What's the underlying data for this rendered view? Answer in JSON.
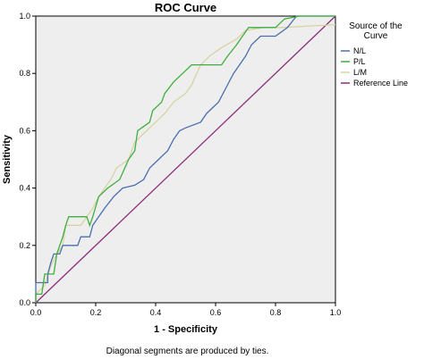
{
  "chart_data": {
    "type": "line",
    "title": "ROC Curve",
    "xlabel": "1 - Specificity",
    "ylabel": "Sensitivity",
    "xlim": [
      0,
      1
    ],
    "ylim": [
      0,
      1
    ],
    "x_ticks": [
      "0.0",
      "0.2",
      "0.4",
      "0.6",
      "0.8",
      "1.0"
    ],
    "y_ticks": [
      "0.0",
      "0.2",
      "0.4",
      "0.6",
      "0.8",
      "1.0"
    ],
    "grid": false,
    "footnote": "Diagonal segments are produced by ties.",
    "legend": {
      "title": "Source of the Curve",
      "position": "right"
    },
    "series": [
      {
        "name": "N/L",
        "color": "#4a6fad",
        "points": [
          [
            0,
            0
          ],
          [
            0,
            0.07
          ],
          [
            0.04,
            0.07
          ],
          [
            0.04,
            0.1
          ],
          [
            0.05,
            0.14
          ],
          [
            0.06,
            0.17
          ],
          [
            0.08,
            0.17
          ],
          [
            0.09,
            0.2
          ],
          [
            0.14,
            0.2
          ],
          [
            0.15,
            0.23
          ],
          [
            0.18,
            0.23
          ],
          [
            0.19,
            0.27
          ],
          [
            0.21,
            0.3
          ],
          [
            0.23,
            0.33
          ],
          [
            0.26,
            0.37
          ],
          [
            0.29,
            0.4
          ],
          [
            0.33,
            0.41
          ],
          [
            0.36,
            0.43
          ],
          [
            0.38,
            0.47
          ],
          [
            0.41,
            0.5
          ],
          [
            0.44,
            0.53
          ],
          [
            0.46,
            0.57
          ],
          [
            0.48,
            0.6
          ],
          [
            0.5,
            0.61
          ],
          [
            0.55,
            0.63
          ],
          [
            0.57,
            0.66
          ],
          [
            0.61,
            0.7
          ],
          [
            0.64,
            0.76
          ],
          [
            0.66,
            0.8
          ],
          [
            0.68,
            0.83
          ],
          [
            0.7,
            0.86
          ],
          [
            0.72,
            0.9
          ],
          [
            0.75,
            0.93
          ],
          [
            0.8,
            0.93
          ],
          [
            0.84,
            0.96
          ],
          [
            0.87,
            1.0
          ],
          [
            1.0,
            1.0
          ]
        ]
      },
      {
        "name": "P/L",
        "color": "#3fae3f",
        "points": [
          [
            0,
            0
          ],
          [
            0,
            0.03
          ],
          [
            0.02,
            0.03
          ],
          [
            0.03,
            0.1
          ],
          [
            0.06,
            0.1
          ],
          [
            0.07,
            0.17
          ],
          [
            0.08,
            0.2
          ],
          [
            0.09,
            0.23
          ],
          [
            0.1,
            0.27
          ],
          [
            0.11,
            0.3
          ],
          [
            0.17,
            0.3
          ],
          [
            0.18,
            0.27
          ],
          [
            0.19,
            0.3
          ],
          [
            0.21,
            0.37
          ],
          [
            0.24,
            0.4
          ],
          [
            0.28,
            0.43
          ],
          [
            0.31,
            0.5
          ],
          [
            0.33,
            0.53
          ],
          [
            0.34,
            0.6
          ],
          [
            0.38,
            0.63
          ],
          [
            0.39,
            0.67
          ],
          [
            0.42,
            0.7
          ],
          [
            0.43,
            0.73
          ],
          [
            0.46,
            0.77
          ],
          [
            0.49,
            0.8
          ],
          [
            0.52,
            0.83
          ],
          [
            0.62,
            0.83
          ],
          [
            0.64,
            0.86
          ],
          [
            0.67,
            0.9
          ],
          [
            0.69,
            0.93
          ],
          [
            0.71,
            0.96
          ],
          [
            0.8,
            0.96
          ],
          [
            0.83,
            0.99
          ],
          [
            0.88,
            1.0
          ],
          [
            1.0,
            1.0
          ]
        ]
      },
      {
        "name": "L/M",
        "color": "#d9d3a3",
        "points": [
          [
            0,
            0
          ],
          [
            0,
            0.03
          ],
          [
            0.03,
            0.06
          ],
          [
            0.05,
            0.13
          ],
          [
            0.07,
            0.17
          ],
          [
            0.09,
            0.2
          ],
          [
            0.1,
            0.27
          ],
          [
            0.15,
            0.27
          ],
          [
            0.19,
            0.33
          ],
          [
            0.21,
            0.37
          ],
          [
            0.25,
            0.43
          ],
          [
            0.27,
            0.47
          ],
          [
            0.31,
            0.5
          ],
          [
            0.33,
            0.56
          ],
          [
            0.37,
            0.6
          ],
          [
            0.4,
            0.63
          ],
          [
            0.43,
            0.66
          ],
          [
            0.46,
            0.7
          ],
          [
            0.5,
            0.73
          ],
          [
            0.52,
            0.76
          ],
          [
            0.55,
            0.83
          ],
          [
            0.58,
            0.86
          ],
          [
            0.62,
            0.89
          ],
          [
            0.67,
            0.92
          ],
          [
            0.7,
            0.95
          ],
          [
            0.76,
            0.96
          ],
          [
            0.82,
            0.96
          ],
          [
            1.0,
            0.97
          ]
        ]
      },
      {
        "name": "Reference Line",
        "color": "#8b2f7a",
        "points": [
          [
            0,
            0
          ],
          [
            1,
            1
          ]
        ]
      }
    ]
  }
}
